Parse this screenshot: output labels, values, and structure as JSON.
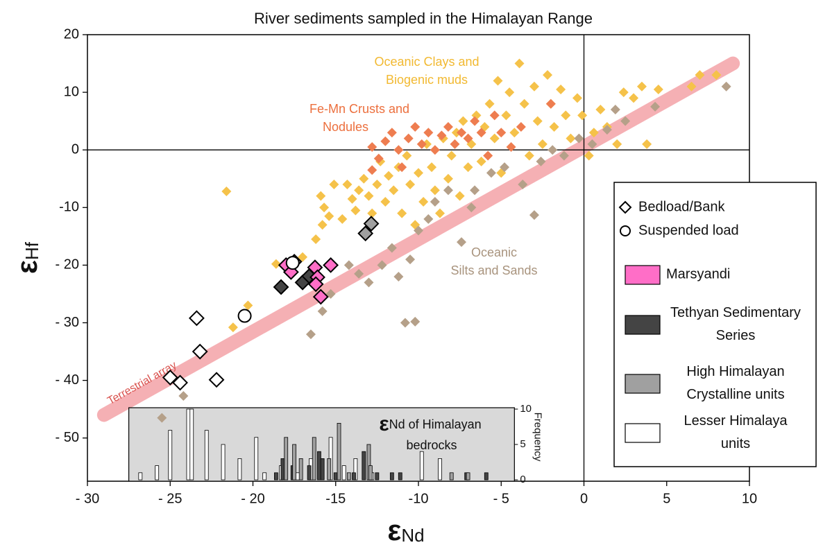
{
  "chart_data": {
    "type": "scatter",
    "title": "River sediments sampled in the Himalayan Range",
    "xlabel": {
      "symbol": "ε",
      "sub": "Nd"
    },
    "ylabel": {
      "symbol": "ε",
      "sub": "Hf"
    },
    "xlim": [
      -30,
      10
    ],
    "ylim": [
      -57.5,
      20
    ],
    "xticks": [
      {
        "value": -30,
        "label": "- 30"
      },
      {
        "value": -25,
        "label": "- 25"
      },
      {
        "value": -20,
        "label": "- 20"
      },
      {
        "value": -15,
        "label": "-15"
      },
      {
        "value": -10,
        "label": "-10"
      },
      {
        "value": -5,
        "label": "- 5"
      },
      0,
      5,
      10
    ],
    "yticks": [
      20,
      10,
      0,
      -10,
      {
        "value": -20,
        "label": "- 20"
      },
      {
        "value": -30,
        "label": "- 30"
      },
      {
        "value": -40,
        "label": "- 40"
      },
      {
        "value": -50,
        "label": "- 50"
      }
    ],
    "zero_lines": true,
    "terrestrial_array": {
      "label": "Terrestrial array",
      "color": "#f4a3a8",
      "x": [
        -29,
        9
      ],
      "values": [
        -46,
        15
      ]
    },
    "annotations": [
      {
        "lines": [
          "Oceanic Clays and",
          "Biogenic muds"
        ],
        "color": "#f2b931"
      },
      {
        "lines": [
          "Fe-Mn Crusts and",
          "Nodules"
        ],
        "color": "#ec6f3d"
      },
      {
        "lines": [
          "Oceanic",
          "Silts and Sands"
        ],
        "color": "#a8937d"
      }
    ],
    "series": [
      {
        "color": "#f5c24a",
        "marker": "diamond",
        "size": "small",
        "x": [
          -21.6,
          -21.2,
          -20.3,
          -18.6,
          -17,
          -16.2,
          -15.8,
          -15.4,
          -15.9,
          -15.7,
          -15.1,
          -14.3,
          -14.6,
          -14,
          -13.8,
          -13.6,
          -13.3,
          -13,
          -12.8,
          -12.5,
          -12.3,
          -12,
          -11.8,
          -11.5,
          -11.2,
          -11,
          -10.7,
          -10.5,
          -10.2,
          -10,
          -9.7,
          -9.5,
          -9.2,
          -9,
          -8.7,
          -8.5,
          -8.2,
          -8,
          -7.7,
          -7.5,
          -7.3,
          -7,
          -6.8,
          -6.5,
          -6.2,
          -6,
          -5.7,
          -5.4,
          -5.2,
          -5,
          -4.7,
          -4.5,
          -4.2,
          -3.9,
          -3.6,
          -3.3,
          -3,
          -2.8,
          -2.5,
          -2.2,
          -2,
          -1.8,
          -1.4,
          -1.1,
          -0.8,
          -0.4,
          -0.1,
          0.3,
          0.6,
          1,
          1.4,
          2,
          2.4,
          3,
          3.5,
          3.8,
          4.5,
          6.5,
          7,
          8
        ],
        "values": [
          -7.2,
          -30.8,
          -27,
          -19.8,
          -18.6,
          -15.5,
          -13,
          -11.5,
          -8,
          -10,
          -6,
          -6,
          -12,
          -8.5,
          -10.5,
          -7,
          -5,
          -8,
          -11,
          -6,
          -2,
          -9,
          -4.5,
          -7,
          -3,
          -11,
          -1,
          -6,
          -13,
          -4,
          -9,
          1,
          -3,
          -7,
          -11,
          2,
          -5,
          -1,
          3,
          -8,
          5,
          -3,
          1,
          6,
          -2,
          4,
          8,
          2,
          12,
          -4,
          6,
          10,
          3,
          15,
          8,
          -1,
          11,
          5,
          1,
          13,
          8,
          4,
          10.5,
          6,
          2,
          9,
          6,
          -1,
          3,
          7,
          4,
          1,
          10,
          9,
          11,
          1,
          10.5,
          11,
          13,
          13
        ]
      },
      {
        "color": "#ee7d50",
        "marker": "diamond",
        "size": "small",
        "x": [
          -12.8,
          -12.4,
          -12,
          -11.6,
          -11.2,
          -11,
          -10.6,
          -10.2,
          -9.8,
          -9.4,
          -9,
          -8.6,
          -8.2,
          -7.8,
          -7.4,
          -7,
          -6.6,
          -6.2,
          -5.8,
          -5.4,
          -5,
          -4.4,
          -3.8,
          -2,
          -12.8
        ],
        "values": [
          0.5,
          -1.5,
          1.5,
          3,
          0,
          -3,
          2,
          4,
          1,
          3,
          0,
          2.5,
          4,
          1,
          3,
          2,
          5,
          3,
          -1,
          6,
          3,
          0.5,
          4,
          8,
          -3.5
        ]
      },
      {
        "color": "#b5a089",
        "marker": "diamond",
        "size": "small",
        "x": [
          -25.5,
          -24.2,
          -16.5,
          -15.8,
          -15.3,
          -14.2,
          -13.6,
          -13,
          -12.2,
          -11.6,
          -11.2,
          -10.8,
          -10.2,
          -10.5,
          -10,
          -9.4,
          -9,
          -8.2,
          -7.4,
          -6.6,
          -6.8,
          -5.6,
          -4.8,
          -3.7,
          -3,
          -2.6,
          -1.9,
          -1.2,
          -0.3,
          0.5,
          1.4,
          1.9,
          2.5,
          4.3,
          8.6
        ],
        "values": [
          -46.5,
          -42.7,
          -32,
          -28,
          -25,
          -20,
          -21.5,
          -23,
          -20,
          -17,
          -22,
          -30,
          -29.8,
          -19,
          -14,
          -12,
          -9,
          -7,
          -16,
          -7,
          -10,
          -4,
          -3,
          -6,
          -11.3,
          -2,
          0,
          -1,
          2,
          1,
          3.5,
          7,
          5,
          7.5,
          11
        ]
      },
      {
        "color": "#a0a0a0",
        "marker": "diamond",
        "size": "large",
        "x": [
          -17.5,
          -13.2,
          -12.85
        ],
        "values": [
          -19.4,
          -14.5,
          -12.8
        ]
      },
      {
        "color": "#444444",
        "marker": "diamond",
        "size": "large",
        "x": [
          -18.3,
          -17,
          -16.6
        ],
        "values": [
          -23.8,
          -23,
          -21.9
        ]
      },
      {
        "color": "#ff6ec7",
        "marker": "diamond",
        "size": "large",
        "x": [
          -18,
          -17.7,
          -16.25,
          -16.1,
          -16.2,
          -15.9,
          -15.3
        ],
        "values": [
          -20,
          -21.2,
          -20.4,
          -22.1,
          -23.3,
          -25.5,
          -20
        ]
      },
      {
        "color": "#ffffff",
        "marker": "diamond",
        "size": "large",
        "x": [
          -23.4,
          -23.2,
          -25,
          -24.4,
          -22.2
        ],
        "values": [
          -29.2,
          -35,
          -39.5,
          -40.4,
          -39.9
        ]
      },
      {
        "color": "#ffffff",
        "marker": "circle",
        "size": "large",
        "x": [
          -20.5,
          -17.6
        ],
        "values": [
          -28.8,
          -19.6
        ]
      }
    ],
    "legend": [
      {
        "lines": [
          "Bedload/Bank"
        ],
        "marker": "diamond",
        "color": "#ffffff"
      },
      {
        "lines": [
          "Suspended load"
        ],
        "marker": "circle",
        "color": "#ffffff"
      },
      {
        "lines": [
          "Marsyandi"
        ],
        "marker": "square",
        "color": "#ff6ec7"
      },
      {
        "lines": [
          "Tethyan Sedimentary",
          "Series"
        ],
        "marker": "square",
        "color": "#444444"
      },
      {
        "lines": [
          "High Himalayan",
          "Crystalline units"
        ],
        "marker": "square",
        "color": "#a0a0a0"
      },
      {
        "lines": [
          "Lesser Himalaya",
          "units"
        ],
        "marker": "square",
        "color": "#ffffff"
      }
    ],
    "inset": {
      "type": "bar",
      "title": {
        "symbol": "ε",
        "lines": [
          "Nd of Himalayan",
          "bedrocks"
        ]
      },
      "ylabel": "Frequency",
      "xlim": [
        -27.5,
        -4.2
      ],
      "ylim": [
        0,
        10
      ],
      "yticks": [
        0,
        5,
        10
      ],
      "series": [
        {
          "color": "#ffffff",
          "x": [
            -26.8,
            -25.8,
            -25,
            -23.9,
            -23.7,
            -22.8,
            -21.8,
            -20.8,
            -19.8,
            -19.3,
            -18.3,
            -17.3,
            -16.5,
            -15.3,
            -14.5,
            -13.8,
            -12.8,
            -9.8,
            -8.7
          ],
          "values": [
            1,
            2,
            7,
            10,
            10,
            7,
            5,
            3,
            6,
            1,
            2,
            1,
            3,
            6,
            2,
            3,
            1,
            4,
            3
          ]
        },
        {
          "color": "#444444",
          "x": [
            -18.6,
            -18.2,
            -17.6,
            -16.6,
            -16,
            -15.8,
            -15,
            -13.9,
            -13.3,
            -12.5,
            -11.6,
            -11.1,
            -7.1,
            -5.9
          ],
          "values": [
            1,
            3,
            2,
            2,
            4,
            3,
            1,
            1,
            4,
            1,
            1,
            1,
            1,
            1
          ]
        },
        {
          "color": "#a0a0a0",
          "x": [
            -18,
            -17.5,
            -17.1,
            -16.3,
            -15.4,
            -14.8,
            -14.2,
            -13,
            -12.9,
            -8,
            -7
          ],
          "values": [
            6,
            5,
            3,
            6,
            3,
            8,
            1,
            5,
            2,
            1,
            1
          ]
        }
      ]
    }
  }
}
